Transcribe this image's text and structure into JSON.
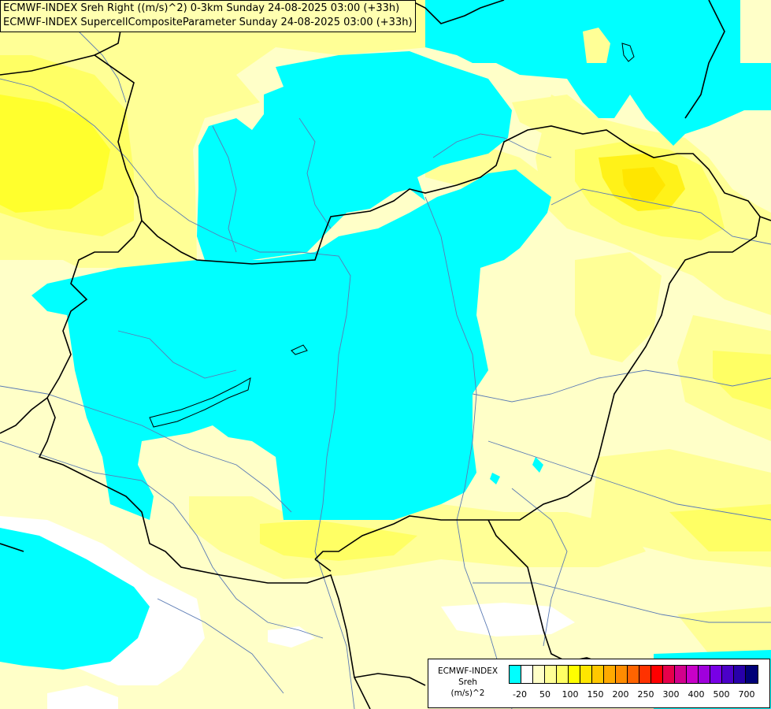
{
  "titles": {
    "line1": "ECMWF-INDEX Sreh Right ((m/s)^2) 0-3km Sunday 24-08-2025 03:00 (+33h)",
    "line2": "ECMWF-INDEX SupercellCompositeParameter Sunday 24-08-2025 03:00 (+33h)"
  },
  "legend": {
    "label_line1": "ECMWF-INDEX",
    "label_line2": "Sreh",
    "label_line3": "(m/s)^2",
    "colors": [
      "#00ffff",
      "#ffffff",
      "#ffffc8",
      "#ffff96",
      "#ffff64",
      "#ffff00",
      "#ffe600",
      "#ffc800",
      "#ffaa00",
      "#ff8c00",
      "#ff6400",
      "#ff3200",
      "#ff0000",
      "#e6004b",
      "#d2008c",
      "#c800c8",
      "#a000dc",
      "#7800e6",
      "#4b00c8",
      "#2800aa",
      "#000078"
    ],
    "ticks": [
      "-20",
      "50",
      "100",
      "150",
      "200",
      "250",
      "300",
      "400",
      "500",
      "700"
    ]
  },
  "colors": {
    "cyan": "#00ffff",
    "pale_yellow": "#ffffc8",
    "light_yellow": "#ffff96",
    "yellow": "#ffff64",
    "deep_yellow": "#ffff00",
    "gold": "#ffe600",
    "border": "#000000",
    "river": "#5a7ab4"
  }
}
